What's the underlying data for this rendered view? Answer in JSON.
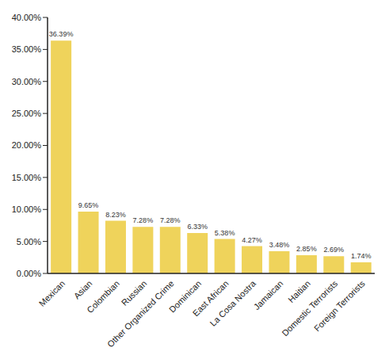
{
  "chart_data": {
    "type": "bar",
    "categories": [
      "Mexican",
      "Asian",
      "Colombian",
      "Russian",
      "Other Organized Crime",
      "Dominican",
      "East African",
      "La Cosa Nostra",
      "Jamaican",
      "Haitian",
      "Domestic Terrorists",
      "Foreign Terrorists"
    ],
    "values": [
      36.39,
      9.65,
      8.23,
      7.28,
      7.28,
      6.33,
      5.38,
      4.27,
      3.48,
      2.85,
      2.69,
      1.74
    ],
    "value_labels": [
      "36.39%",
      "9.65%",
      "8.23%",
      "7.28%",
      "7.28%",
      "6.33%",
      "5.38%",
      "4.27%",
      "3.48%",
      "2.85%",
      "2.69%",
      "1.74%"
    ],
    "color": "#efd35b",
    "ylim": [
      0,
      40
    ],
    "yticks": [
      {
        "value": 0,
        "label": "0.00%"
      },
      {
        "value": 5,
        "label": "5.00%"
      },
      {
        "value": 10,
        "label": "10.00%"
      },
      {
        "value": 15,
        "label": "15.00%"
      },
      {
        "value": 20,
        "label": "20.00%"
      },
      {
        "value": 25,
        "label": "25.00%"
      },
      {
        "value": 30,
        "label": "30.00%"
      },
      {
        "value": 35,
        "label": "35.00%"
      },
      {
        "value": 40,
        "label": "40.00%"
      }
    ],
    "grid": false,
    "data_labels": true
  }
}
